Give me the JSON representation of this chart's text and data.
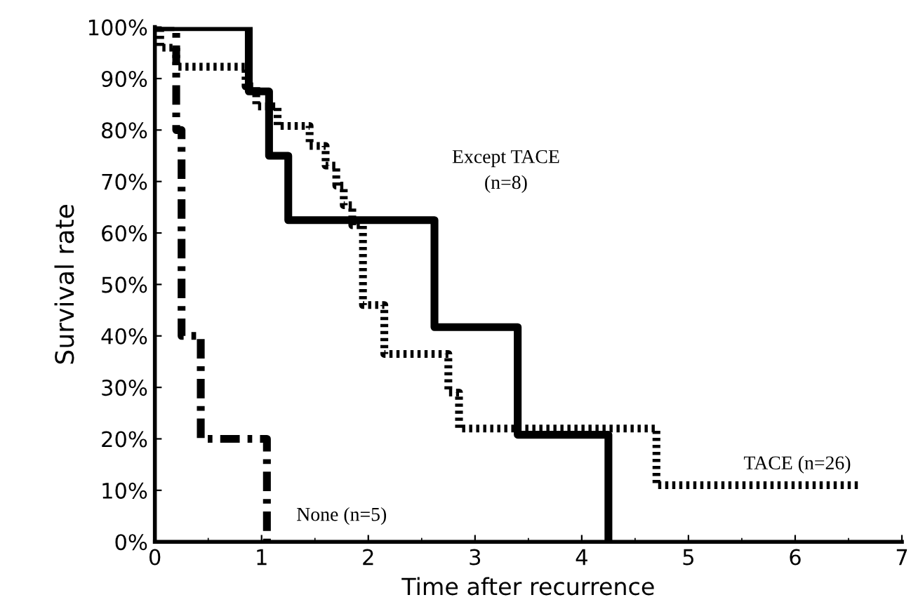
{
  "chart_data": {
    "type": "step",
    "xlabel": "Time after recurrence",
    "ylabel": "Survival rate",
    "xlim": [
      0,
      7
    ],
    "xticks": [
      0,
      1,
      2,
      3,
      4,
      5,
      6,
      7
    ],
    "ylim": [
      0,
      100
    ],
    "yticks": [
      {
        "value": 0,
        "label": "0%"
      },
      {
        "value": 10,
        "label": "10%"
      },
      {
        "value": 20,
        "label": "20%"
      },
      {
        "value": 30,
        "label": "30%"
      },
      {
        "value": 40,
        "label": "40%"
      },
      {
        "value": 50,
        "label": "50%"
      },
      {
        "value": 60,
        "label": "60%"
      },
      {
        "value": 70,
        "label": "70%"
      },
      {
        "value": 80,
        "label": "80%"
      },
      {
        "value": 90,
        "label": "90%"
      },
      {
        "value": 100,
        "label": "100%"
      }
    ],
    "grid": false,
    "marker": "none",
    "series": [
      {
        "name": "Except TACE\n(n=8)",
        "color": "#000000",
        "line_style": "solid",
        "x": [
          0,
          0.88,
          1.07,
          1.25,
          2.62,
          3.4,
          4.25
        ],
        "values": [
          100,
          87.5,
          75,
          62.5,
          41.7,
          20.8,
          0
        ]
      },
      {
        "name": "None (n=5)",
        "color": "#000000",
        "line_style": "dashdot",
        "x": [
          0,
          0.2,
          0.25,
          0.43,
          1.05
        ],
        "values": [
          100,
          80,
          40,
          20,
          0
        ]
      },
      {
        "name": "TACE (n=26)",
        "color": "#000000",
        "line_style": "dotted",
        "x": [
          0,
          0.05,
          0.2,
          0.85,
          0.95,
          1.15,
          1.45,
          1.6,
          1.7,
          1.77,
          1.85,
          1.95,
          2.15,
          2.75,
          2.85,
          4.7,
          6.6
        ],
        "values": [
          100,
          96,
          92.3,
          88.5,
          84.6,
          80.8,
          76.9,
          73.1,
          69.2,
          65.4,
          61.5,
          46,
          36.5,
          29,
          22,
          11,
          11
        ]
      }
    ]
  }
}
